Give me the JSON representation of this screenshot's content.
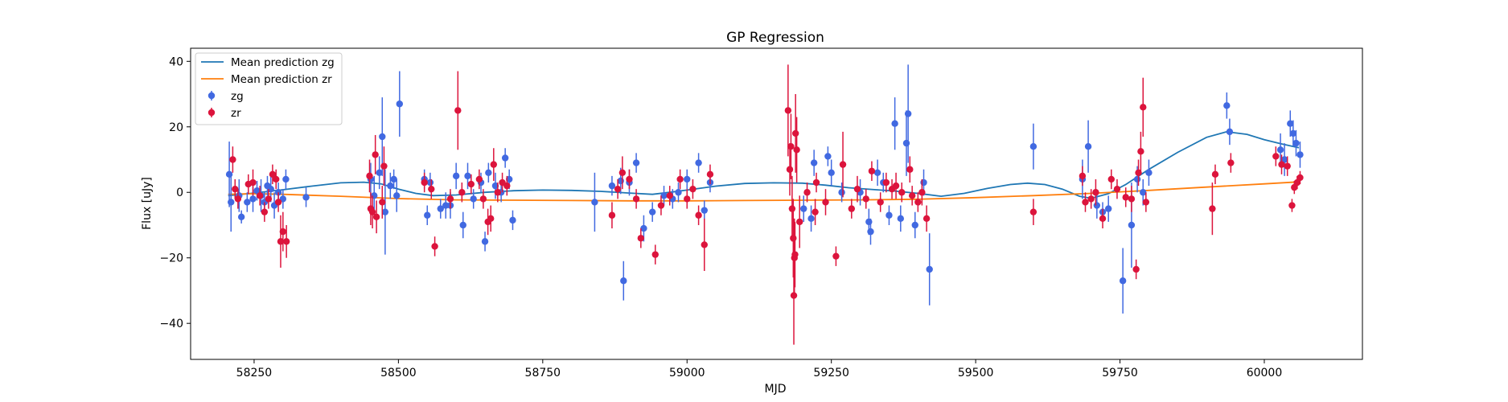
{
  "chart_data": {
    "type": "scatter",
    "title": "GP Regression",
    "xlabel": "MJD",
    "ylabel": "Flux [uJy]",
    "xlim": [
      58140,
      60170
    ],
    "ylim": [
      -51,
      44
    ],
    "xticks": [
      58250,
      58500,
      58750,
      59000,
      59250,
      59500,
      59750,
      60000
    ],
    "yticks": [
      -40,
      -20,
      0,
      20,
      40
    ],
    "grid": false,
    "legend": {
      "placement": "top-left",
      "entries": [
        {
          "label": "Mean prediction zg",
          "kind": "line",
          "color": "#1f77b4"
        },
        {
          "label": "Mean prediction zr",
          "kind": "line",
          "color": "#ff7f0e"
        },
        {
          "label": "zg",
          "kind": "errorbar",
          "color": "#4169e1"
        },
        {
          "label": "zr",
          "kind": "errorbar",
          "color": "#dc143c"
        }
      ]
    },
    "lines": [
      {
        "name": "Mean prediction zg",
        "color": "#1f77b4",
        "x": [
          58205,
          58250,
          58300,
          58350,
          58400,
          58440,
          58470,
          58500,
          58530,
          58560,
          58600,
          58650,
          58700,
          58750,
          58800,
          58850,
          58900,
          58940,
          58970,
          59000,
          59050,
          59100,
          59150,
          59200,
          59240,
          59280,
          59320,
          59360,
          59400,
          59440,
          59480,
          59520,
          59560,
          59590,
          59620,
          59650,
          59680,
          59700,
          59730,
          59760,
          59800,
          59850,
          59900,
          59935,
          59970,
          60000,
          60030,
          60060
        ],
        "y": [
          -1,
          -0.2,
          0.8,
          1.9,
          2.9,
          3.1,
          2.6,
          1.0,
          -0.3,
          -1.0,
          -0.8,
          0.0,
          0.5,
          0.7,
          0.6,
          0.3,
          -0.2,
          -0.6,
          0.0,
          0.7,
          1.9,
          2.7,
          2.9,
          2.8,
          2.2,
          1.4,
          0.9,
          0.4,
          -0.3,
          -1.2,
          -0.3,
          1.2,
          2.4,
          2.8,
          2.4,
          1.0,
          -1.2,
          -1.8,
          -0.4,
          2.4,
          7.0,
          12.2,
          16.8,
          18.5,
          17.7,
          16.1,
          14.8,
          13.6
        ]
      },
      {
        "name": "Mean prediction zr",
        "color": "#ff7f0e",
        "x": [
          58205,
          58250,
          58300,
          58400,
          58500,
          58600,
          58700,
          58800,
          58900,
          59000,
          59100,
          59200,
          59300,
          59400,
          59500,
          59600,
          59700,
          59800,
          59900,
          60000,
          60060
        ],
        "y": [
          -0.6,
          -0.4,
          -0.6,
          -1.2,
          -1.9,
          -2.3,
          -2.4,
          -2.5,
          -2.6,
          -2.6,
          -2.5,
          -2.4,
          -2.3,
          -2.1,
          -1.6,
          -1.0,
          -0.3,
          0.6,
          1.6,
          2.6,
          3.2
        ]
      }
    ],
    "series": [
      {
        "name": "zg",
        "color": "#4169e1",
        "points": [
          [
            58207,
            5.5,
            10
          ],
          [
            58210,
            -3,
            9
          ],
          [
            58224,
            -1,
            5
          ],
          [
            58228,
            -7.5,
            2
          ],
          [
            58238,
            -3,
            3
          ],
          [
            58248,
            -2,
            4
          ],
          [
            58255,
            0.5,
            3
          ],
          [
            58262,
            -1,
            5
          ],
          [
            58268,
            -3,
            3
          ],
          [
            58273,
            2,
            3
          ],
          [
            58279,
            1,
            4
          ],
          [
            58285,
            -4,
            4
          ],
          [
            58292,
            0,
            3
          ],
          [
            58300,
            -2,
            3
          ],
          [
            58305,
            4,
            3
          ],
          [
            58340,
            -1.5,
            3
          ],
          [
            58452,
            4,
            5
          ],
          [
            58458,
            -1,
            6
          ],
          [
            58467,
            6,
            5
          ],
          [
            58472,
            17,
            12
          ],
          [
            58477,
            -6,
            13
          ],
          [
            58486,
            2,
            4
          ],
          [
            58492,
            4,
            3
          ],
          [
            58497,
            -1,
            5
          ],
          [
            58502,
            27,
            10
          ],
          [
            58545,
            4,
            3
          ],
          [
            58550,
            -7,
            3
          ],
          [
            58555,
            3,
            3
          ],
          [
            58573,
            -5,
            3
          ],
          [
            58582,
            -4,
            4
          ],
          [
            58590,
            -4,
            4
          ],
          [
            58600,
            5,
            4
          ],
          [
            58612,
            -10,
            4
          ],
          [
            58620,
            5,
            4
          ],
          [
            58630,
            -2,
            3
          ],
          [
            58643,
            3,
            3
          ],
          [
            58650,
            -15,
            3
          ],
          [
            58656,
            6,
            3
          ],
          [
            58668,
            2,
            4
          ],
          [
            58678,
            0,
            3
          ],
          [
            58685,
            10.5,
            3
          ],
          [
            58692,
            4,
            3
          ],
          [
            58698,
            -8.5,
            3
          ],
          [
            58840,
            -3,
            9
          ],
          [
            58870,
            2,
            3
          ],
          [
            58885,
            3.5,
            4
          ],
          [
            58890,
            -27,
            6
          ],
          [
            58900,
            3,
            4
          ],
          [
            58912,
            9,
            3
          ],
          [
            58925,
            -11,
            4
          ],
          [
            58940,
            -6,
            3
          ],
          [
            58960,
            -1,
            3
          ],
          [
            58975,
            -2,
            3
          ],
          [
            58985,
            0,
            3
          ],
          [
            59000,
            4,
            3
          ],
          [
            59020,
            9,
            3
          ],
          [
            59030,
            -5.5,
            3
          ],
          [
            59040,
            3,
            3
          ],
          [
            59202,
            -5,
            4
          ],
          [
            59215,
            -8,
            4
          ],
          [
            59220,
            9,
            4
          ],
          [
            59244,
            11,
            3
          ],
          [
            59250,
            6,
            4
          ],
          [
            59268,
            0,
            3
          ],
          [
            59300,
            0,
            4
          ],
          [
            59315,
            -9,
            4
          ],
          [
            59318,
            -12,
            4
          ],
          [
            59330,
            6,
            4
          ],
          [
            59340,
            3,
            3
          ],
          [
            59350,
            -7,
            3
          ],
          [
            59360,
            21,
            8
          ],
          [
            59370,
            -8,
            4
          ],
          [
            59380,
            15,
            10
          ],
          [
            59383,
            24,
            15
          ],
          [
            59395,
            -10,
            4
          ],
          [
            59410,
            3,
            4
          ],
          [
            59420,
            -23.5,
            11
          ],
          [
            59600,
            14,
            7
          ],
          [
            59685,
            4,
            6
          ],
          [
            59695,
            14,
            8
          ],
          [
            59710,
            -4,
            4
          ],
          [
            59720,
            -6,
            3
          ],
          [
            59730,
            -5,
            4
          ],
          [
            59755,
            -27,
            10
          ],
          [
            59770,
            -10,
            13
          ],
          [
            59780,
            4,
            4
          ],
          [
            59790,
            0,
            4
          ],
          [
            59800,
            6,
            4
          ],
          [
            59935,
            26.5,
            4
          ],
          [
            59940,
            18.5,
            4
          ],
          [
            60028,
            13,
            5
          ],
          [
            60035,
            10,
            5
          ],
          [
            60045,
            21,
            4
          ],
          [
            60050,
            18,
            4
          ],
          [
            60055,
            15,
            4
          ],
          [
            60062,
            11.5,
            4
          ]
        ]
      },
      {
        "name": "zr",
        "color": "#dc143c",
        "points": [
          [
            58213,
            10,
            4
          ],
          [
            58217,
            1,
            3
          ],
          [
            58222,
            -2,
            3
          ],
          [
            58240,
            2.5,
            3
          ],
          [
            58248,
            3,
            4
          ],
          [
            58260,
            -1,
            3
          ],
          [
            58268,
            -6,
            3
          ],
          [
            58275,
            -2,
            3
          ],
          [
            58282,
            5.5,
            3
          ],
          [
            58288,
            4,
            3
          ],
          [
            58292,
            -3,
            3
          ],
          [
            58296,
            -15,
            8
          ],
          [
            58300,
            -12,
            6
          ],
          [
            58306,
            -15,
            5
          ],
          [
            58450,
            5,
            5
          ],
          [
            58452,
            -5,
            5
          ],
          [
            58455,
            -6,
            5
          ],
          [
            58460,
            11.5,
            6
          ],
          [
            58462,
            -7.5,
            5
          ],
          [
            58472,
            -3,
            5
          ],
          [
            58475,
            8,
            6
          ],
          [
            58545,
            3,
            3
          ],
          [
            58557,
            1,
            3
          ],
          [
            58563,
            -16.5,
            3
          ],
          [
            58590,
            -2,
            3
          ],
          [
            58603,
            25,
            12
          ],
          [
            58610,
            0,
            3
          ],
          [
            58626,
            2.5,
            3
          ],
          [
            58640,
            4,
            3
          ],
          [
            58647,
            -2,
            3
          ],
          [
            58655,
            -9,
            4
          ],
          [
            58660,
            -8,
            4
          ],
          [
            58665,
            8.5,
            5
          ],
          [
            58672,
            0,
            3
          ],
          [
            58680,
            3,
            3
          ],
          [
            58688,
            2,
            3
          ],
          [
            58870,
            -7,
            4
          ],
          [
            58880,
            1,
            3
          ],
          [
            58888,
            6,
            5
          ],
          [
            58900,
            4,
            3
          ],
          [
            58912,
            -2,
            3
          ],
          [
            58920,
            -14,
            3
          ],
          [
            58945,
            -19,
            3
          ],
          [
            58955,
            -4,
            3
          ],
          [
            58970,
            -1,
            3
          ],
          [
            58988,
            4,
            3
          ],
          [
            59000,
            -2,
            3
          ],
          [
            59010,
            1,
            3
          ],
          [
            59020,
            -7,
            3
          ],
          [
            59030,
            -16,
            8
          ],
          [
            59040,
            5.5,
            3
          ],
          [
            59175,
            25,
            14
          ],
          [
            59178,
            7,
            8
          ],
          [
            59180,
            14,
            10
          ],
          [
            59182,
            -5,
            10
          ],
          [
            59184,
            -14,
            12
          ],
          [
            59185,
            -31.5,
            15
          ],
          [
            59186,
            -20,
            12
          ],
          [
            59187,
            -19,
            10
          ],
          [
            59188,
            18,
            12
          ],
          [
            59190,
            13,
            10
          ],
          [
            59195,
            -9,
            8
          ],
          [
            59208,
            0,
            3
          ],
          [
            59222,
            -6,
            4
          ],
          [
            59224,
            3,
            3
          ],
          [
            59240,
            -3,
            4
          ],
          [
            59258,
            -19.5,
            3
          ],
          [
            59270,
            8.5,
            10
          ],
          [
            59285,
            -5,
            3
          ],
          [
            59295,
            1,
            4
          ],
          [
            59310,
            -2,
            3
          ],
          [
            59320,
            6.5,
            3
          ],
          [
            59335,
            -3,
            3
          ],
          [
            59345,
            3,
            3
          ],
          [
            59355,
            1,
            3
          ],
          [
            59362,
            2,
            4
          ],
          [
            59372,
            0,
            3
          ],
          [
            59386,
            7,
            4
          ],
          [
            59390,
            -1,
            3
          ],
          [
            59400,
            -3,
            3
          ],
          [
            59407,
            0,
            4
          ],
          [
            59415,
            -8,
            4
          ],
          [
            59600,
            -6,
            4
          ],
          [
            59685,
            5,
            3
          ],
          [
            59690,
            -3,
            3
          ],
          [
            59700,
            -2,
            3
          ],
          [
            59708,
            0,
            4
          ],
          [
            59720,
            -8,
            3
          ],
          [
            59735,
            4,
            3
          ],
          [
            59745,
            1,
            3
          ],
          [
            59760,
            -1.5,
            3
          ],
          [
            59770,
            -2,
            4
          ],
          [
            59778,
            -23.5,
            3
          ],
          [
            59782,
            6,
            4
          ],
          [
            59786,
            12.5,
            6
          ],
          [
            59790,
            26,
            9
          ],
          [
            59795,
            -3,
            3
          ],
          [
            59910,
            -5,
            8
          ],
          [
            59915,
            5.5,
            3
          ],
          [
            59942,
            9,
            3
          ],
          [
            60020,
            11,
            3
          ],
          [
            60030,
            8.5,
            3
          ],
          [
            60040,
            8,
            3
          ],
          [
            60048,
            -4,
            2
          ],
          [
            60052,
            1.5,
            2
          ],
          [
            60057,
            3,
            2
          ],
          [
            60062,
            4.5,
            2
          ]
        ]
      }
    ]
  }
}
